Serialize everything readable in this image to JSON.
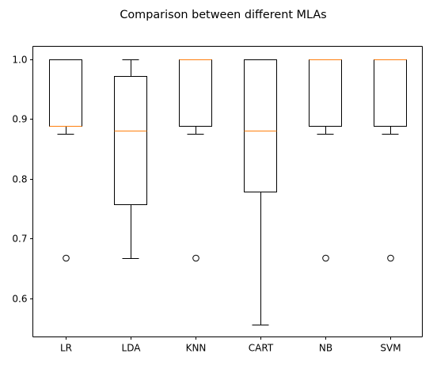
{
  "chart_data": {
    "type": "boxplot",
    "title": "Comparison between different MLAs",
    "xlabel": "",
    "ylabel": "",
    "ylim": [
      0.535,
      1.022
    ],
    "yticks": [
      0.6,
      0.7,
      0.8,
      0.9,
      1.0
    ],
    "ytick_labels": [
      "0.6",
      "0.7",
      "0.8",
      "0.9",
      "1.0"
    ],
    "grid": false,
    "categories": [
      "LR",
      "LDA",
      "KNN",
      "CART",
      "NB",
      "SVM"
    ],
    "boxes": [
      {
        "label": "LR",
        "whisker_low": 0.875,
        "q1": 0.889,
        "median": 0.889,
        "q3": 1.0,
        "whisker_high": 1.0,
        "outliers": [
          0.667
        ]
      },
      {
        "label": "LDA",
        "whisker_low": 0.667,
        "q1": 0.757,
        "median": 0.881,
        "q3": 0.972,
        "whisker_high": 1.0,
        "outliers": []
      },
      {
        "label": "KNN",
        "whisker_low": 0.875,
        "q1": 0.889,
        "median": 1.0,
        "q3": 1.0,
        "whisker_high": 1.0,
        "outliers": [
          0.667
        ]
      },
      {
        "label": "CART",
        "whisker_low": 0.556,
        "q1": 0.778,
        "median": 0.881,
        "q3": 1.0,
        "whisker_high": 1.0,
        "outliers": []
      },
      {
        "label": "NB",
        "whisker_low": 0.875,
        "q1": 0.889,
        "median": 1.0,
        "q3": 1.0,
        "whisker_high": 1.0,
        "outliers": [
          0.667
        ]
      },
      {
        "label": "SVM",
        "whisker_low": 0.875,
        "q1": 0.889,
        "median": 1.0,
        "q3": 1.0,
        "whisker_high": 1.0,
        "outliers": [
          0.667
        ]
      }
    ],
    "colors": {
      "box": "#000000",
      "median": "#ff7f0e",
      "outlier_edge": "#000000",
      "background": "#ffffff"
    }
  }
}
